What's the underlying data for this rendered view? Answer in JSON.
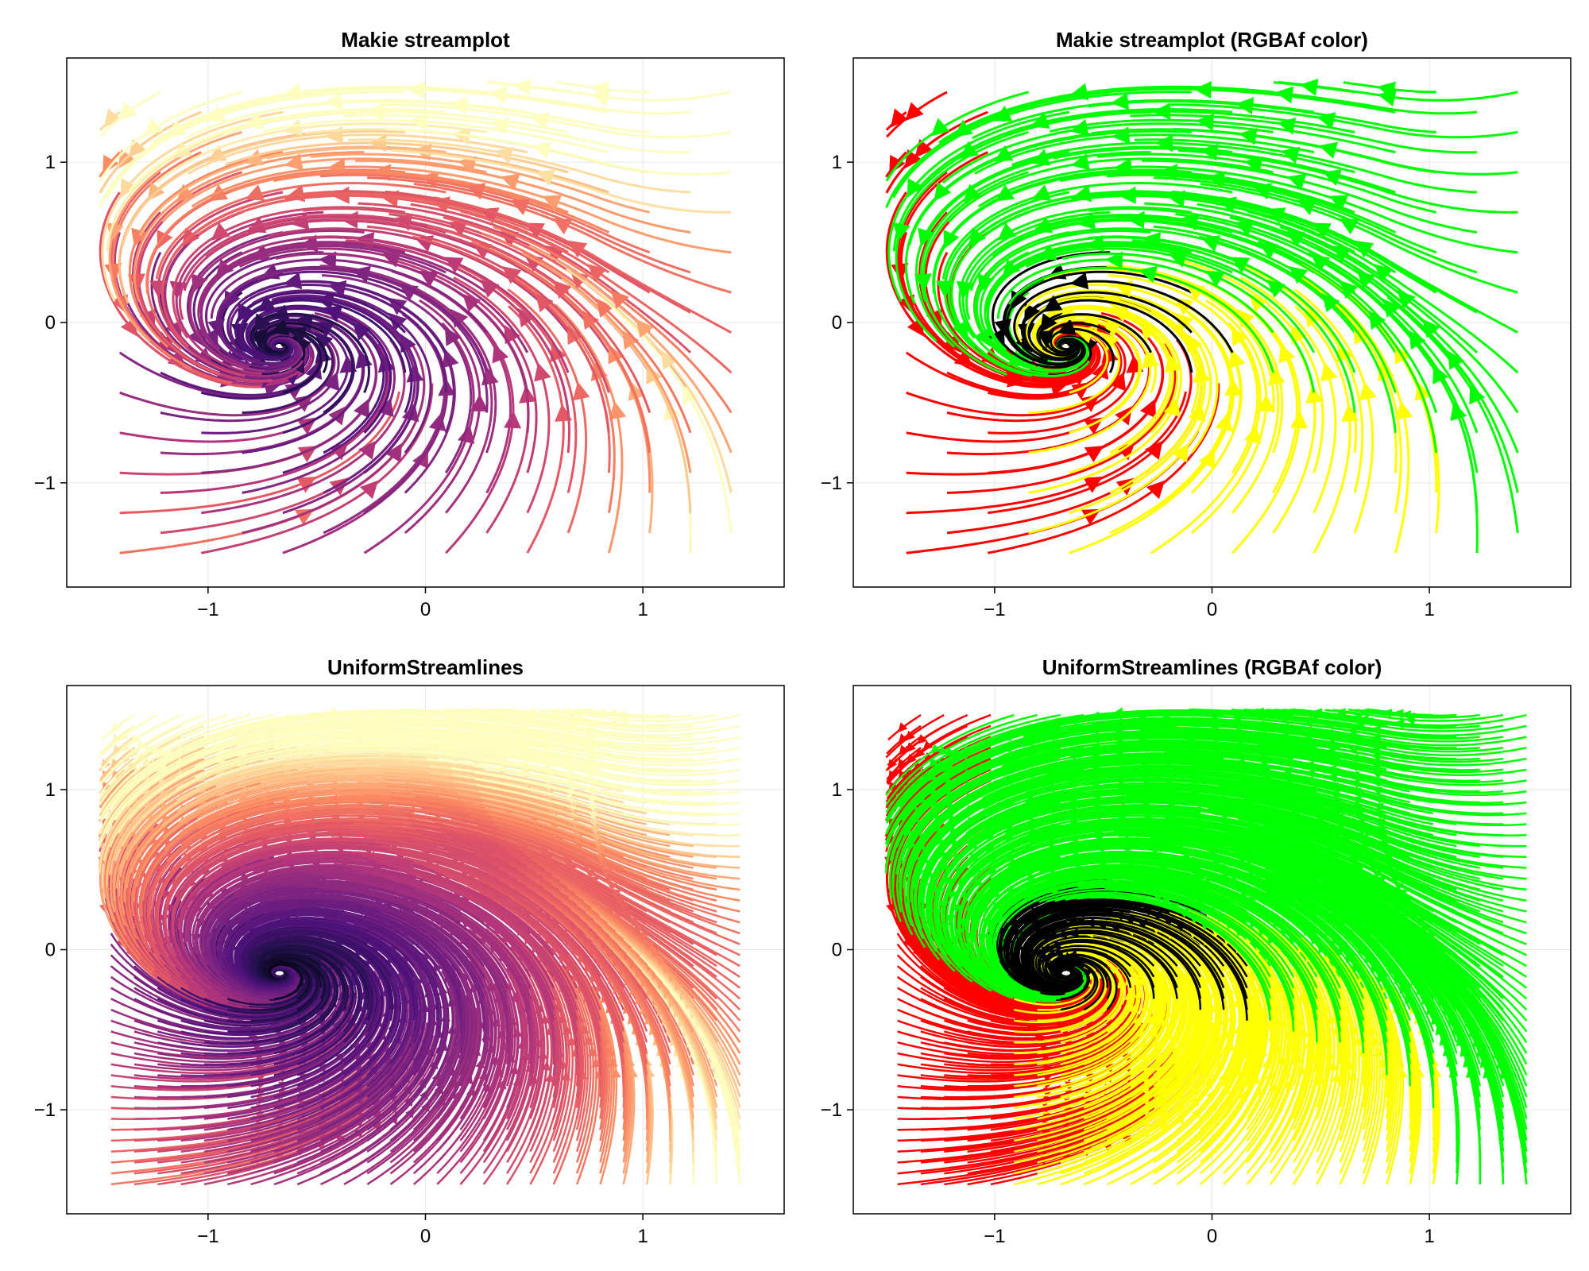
{
  "chart_data": [
    {
      "type": "streamplot",
      "title": "Makie streamplot",
      "style": "makie",
      "color_mode": "colormap",
      "colormap": "magma",
      "xlim": [
        -1.65,
        1.65
      ],
      "ylim": [
        -1.65,
        1.65
      ],
      "xticks": [
        -1,
        0,
        1
      ],
      "yticks": [
        -1,
        0,
        1
      ],
      "xtick_labels": [
        "−1",
        "0",
        "1"
      ],
      "ytick_labels": [
        "−1",
        "0",
        "1"
      ],
      "grid": true
    },
    {
      "type": "streamplot",
      "title": "Makie streamplot (RGBAf color)",
      "style": "makie",
      "color_mode": "rgba",
      "colors": {
        "left": "#ff0000",
        "center_low": "#000000",
        "bottom": "#ffff00",
        "right": "#00ff00"
      },
      "xlim": [
        -1.65,
        1.65
      ],
      "ylim": [
        -1.65,
        1.65
      ],
      "xticks": [
        -1,
        0,
        1
      ],
      "yticks": [
        -1,
        0,
        1
      ],
      "xtick_labels": [
        "−1",
        "0",
        "1"
      ],
      "ytick_labels": [
        "−1",
        "0",
        "1"
      ],
      "grid": true
    },
    {
      "type": "streamplot",
      "title": "UniformStreamlines",
      "style": "uniform",
      "color_mode": "colormap",
      "colormap": "magma",
      "xlim": [
        -1.65,
        1.65
      ],
      "ylim": [
        -1.65,
        1.65
      ],
      "xticks": [
        -1,
        0,
        1
      ],
      "yticks": [
        -1,
        0,
        1
      ],
      "xtick_labels": [
        "−1",
        "0",
        "1"
      ],
      "ytick_labels": [
        "−1",
        "0",
        "1"
      ],
      "grid": true
    },
    {
      "type": "streamplot",
      "title": "UniformStreamlines (RGBAf color)",
      "style": "uniform",
      "color_mode": "rgba",
      "colors": {
        "left": "#ff0000",
        "center_low": "#000000",
        "bottom": "#ffff00",
        "right": "#00ff00"
      },
      "xlim": [
        -1.65,
        1.65
      ],
      "ylim": [
        -1.65,
        1.65
      ],
      "xticks": [
        -1,
        0,
        1
      ],
      "yticks": [
        -1,
        0,
        1
      ],
      "xtick_labels": [
        "−1",
        "0",
        "1"
      ],
      "ytick_labels": [
        "−1",
        "0",
        "1"
      ],
      "grid": true
    }
  ]
}
